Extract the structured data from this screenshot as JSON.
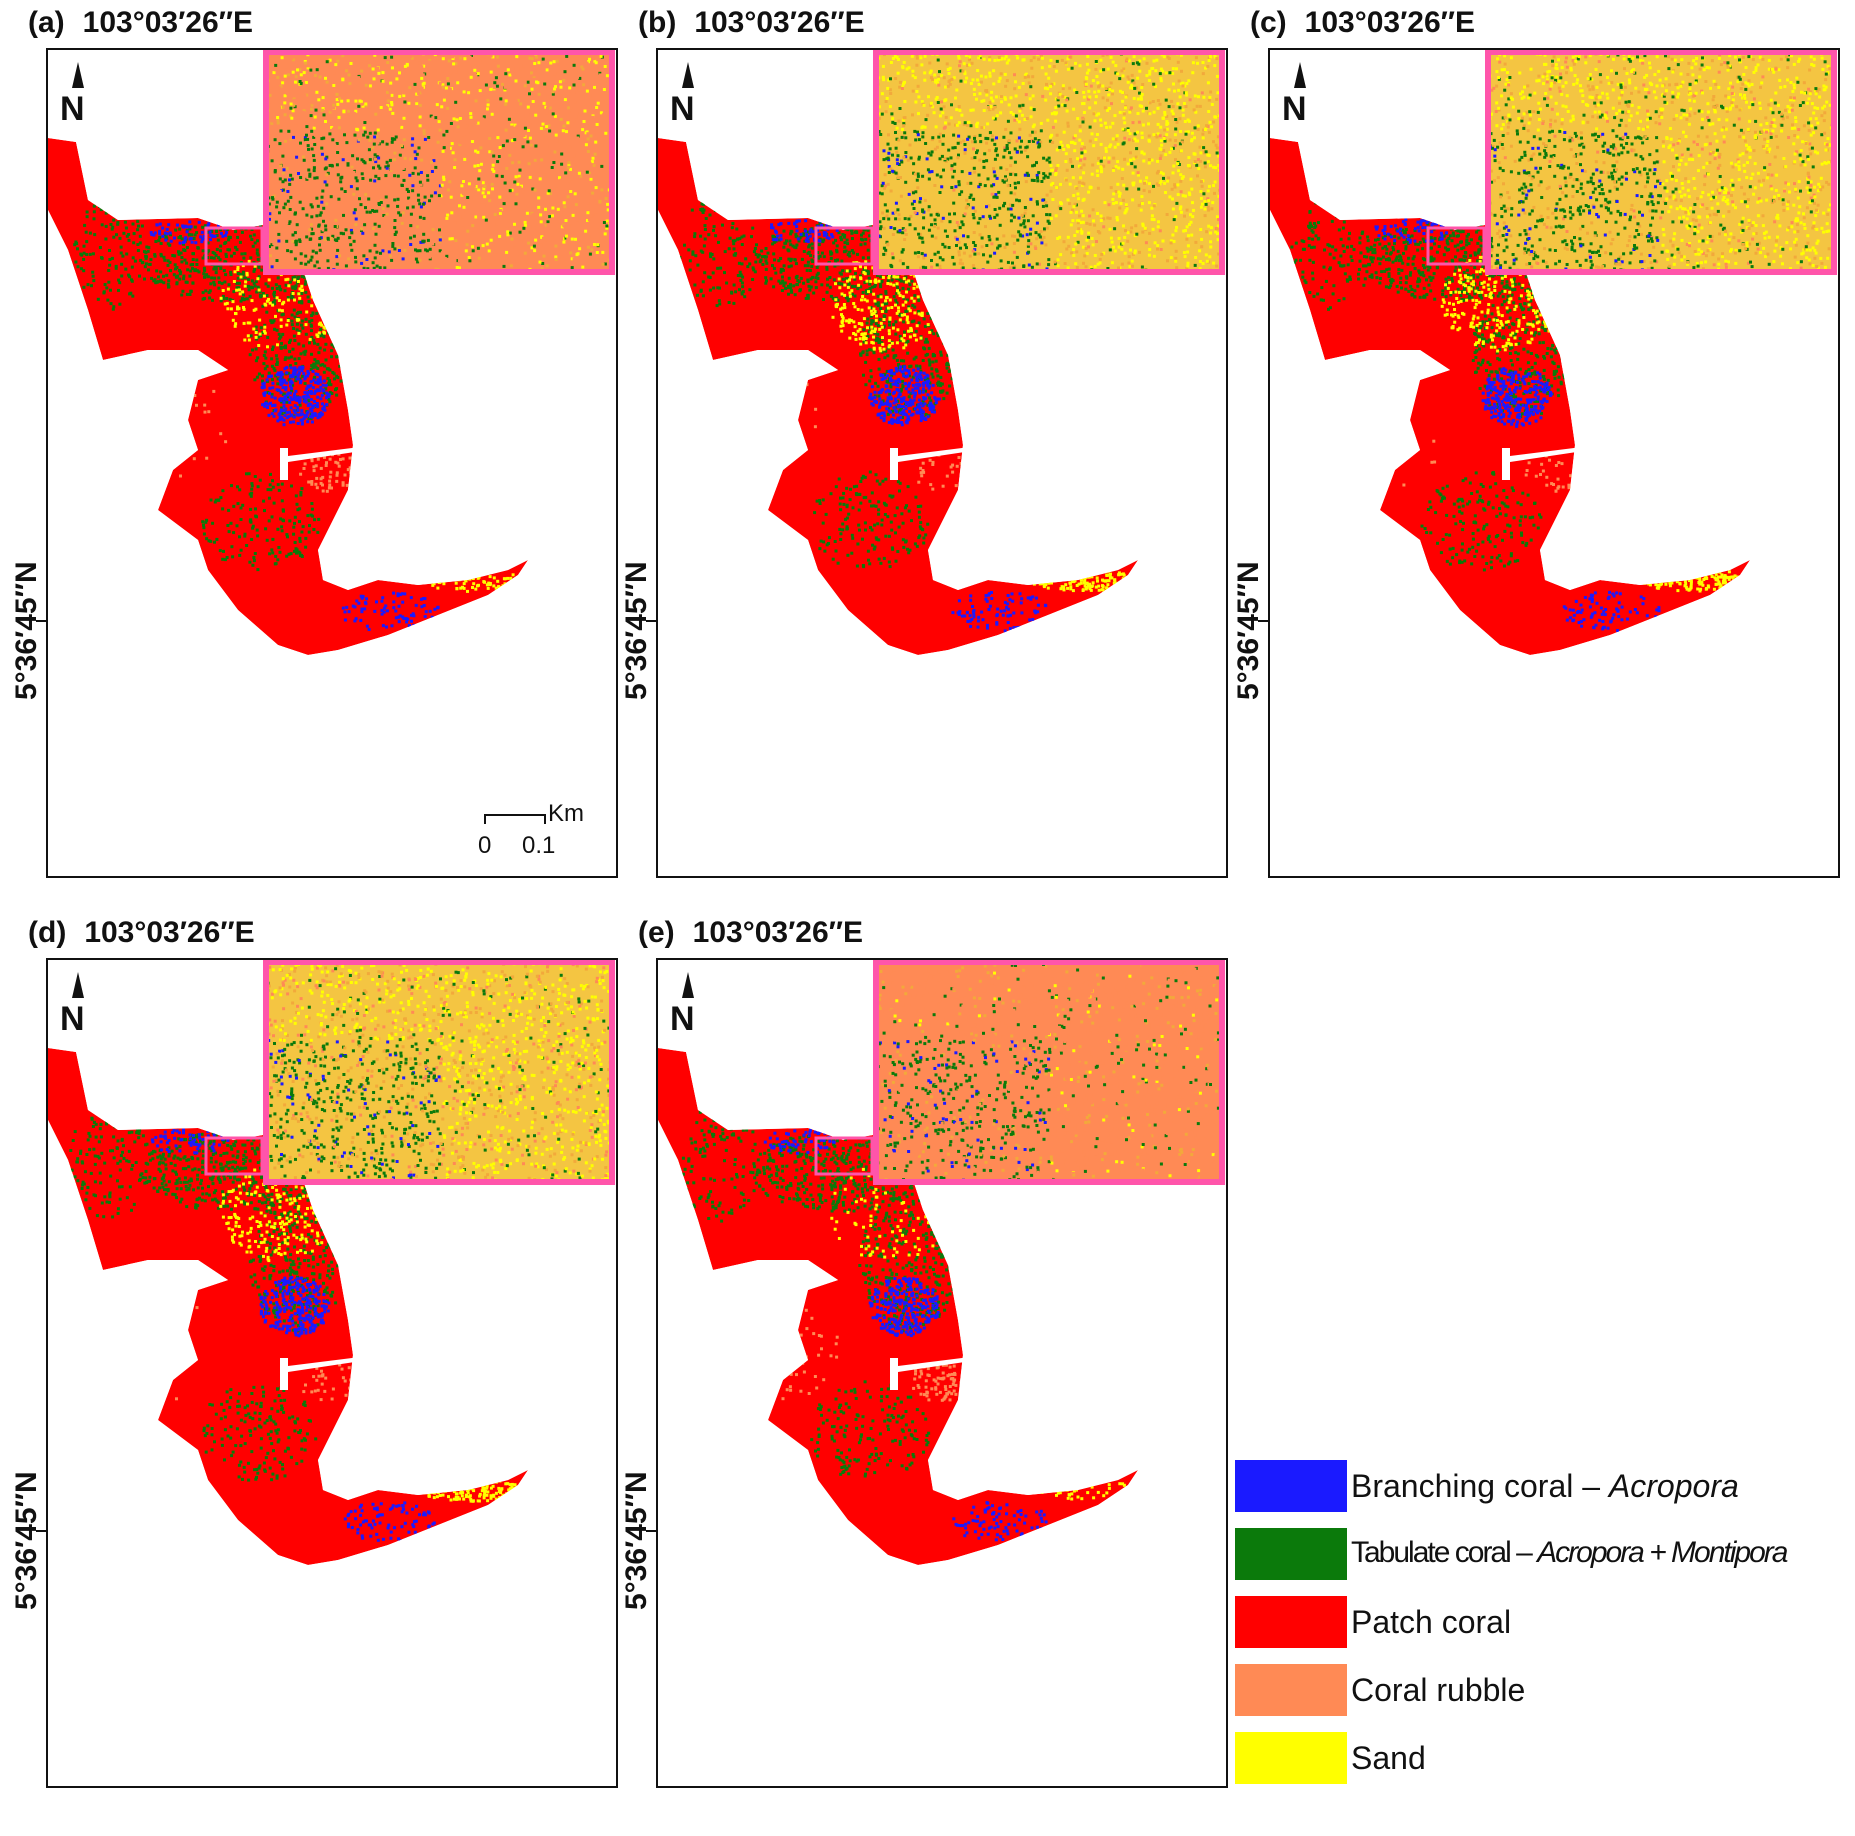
{
  "panels": [
    {
      "label": "(a)",
      "lon": "103°03′26″E",
      "lat": "5°36′45″N",
      "variant": "a"
    },
    {
      "label": "(b)",
      "lon": "103°03′26″E",
      "lat": "5°36′45″N",
      "variant": "b"
    },
    {
      "label": "(c)",
      "lon": "103°03′26″E",
      "lat": "5°36′45″N",
      "variant": "c"
    },
    {
      "label": "(d)",
      "lon": "103°03′26″E",
      "lat": "5°36′45″N",
      "variant": "d"
    },
    {
      "label": "(e)",
      "lon": "103°03′26″E",
      "lat": "5°36′45″N",
      "variant": "e"
    }
  ],
  "north_arrow": "N",
  "scale_bar": {
    "unit": "Km",
    "start": "0",
    "end": "0.1"
  },
  "legend": [
    {
      "label_plain": "Branching coral – ",
      "label_italic": "Acropora",
      "color": "#1a1aff"
    },
    {
      "label_plain": "Tabulate coral – ",
      "label_italic": "Acropora + Montipora",
      "color": "#0b7a0b"
    },
    {
      "label_plain": "Patch coral",
      "label_italic": "",
      "color": "#ff0000"
    },
    {
      "label_plain": "Coral rubble",
      "label_italic": "",
      "color": "#ff8a55"
    },
    {
      "label_plain": "Sand",
      "label_italic": "",
      "color": "#ffff00"
    }
  ],
  "colors": {
    "inset_border": "#ff55aa",
    "branching": "#1a1aff",
    "tabulate": "#0b7a0b",
    "patch": "#ff0000",
    "rubble": "#ff8a55",
    "sand": "#ffff00"
  }
}
